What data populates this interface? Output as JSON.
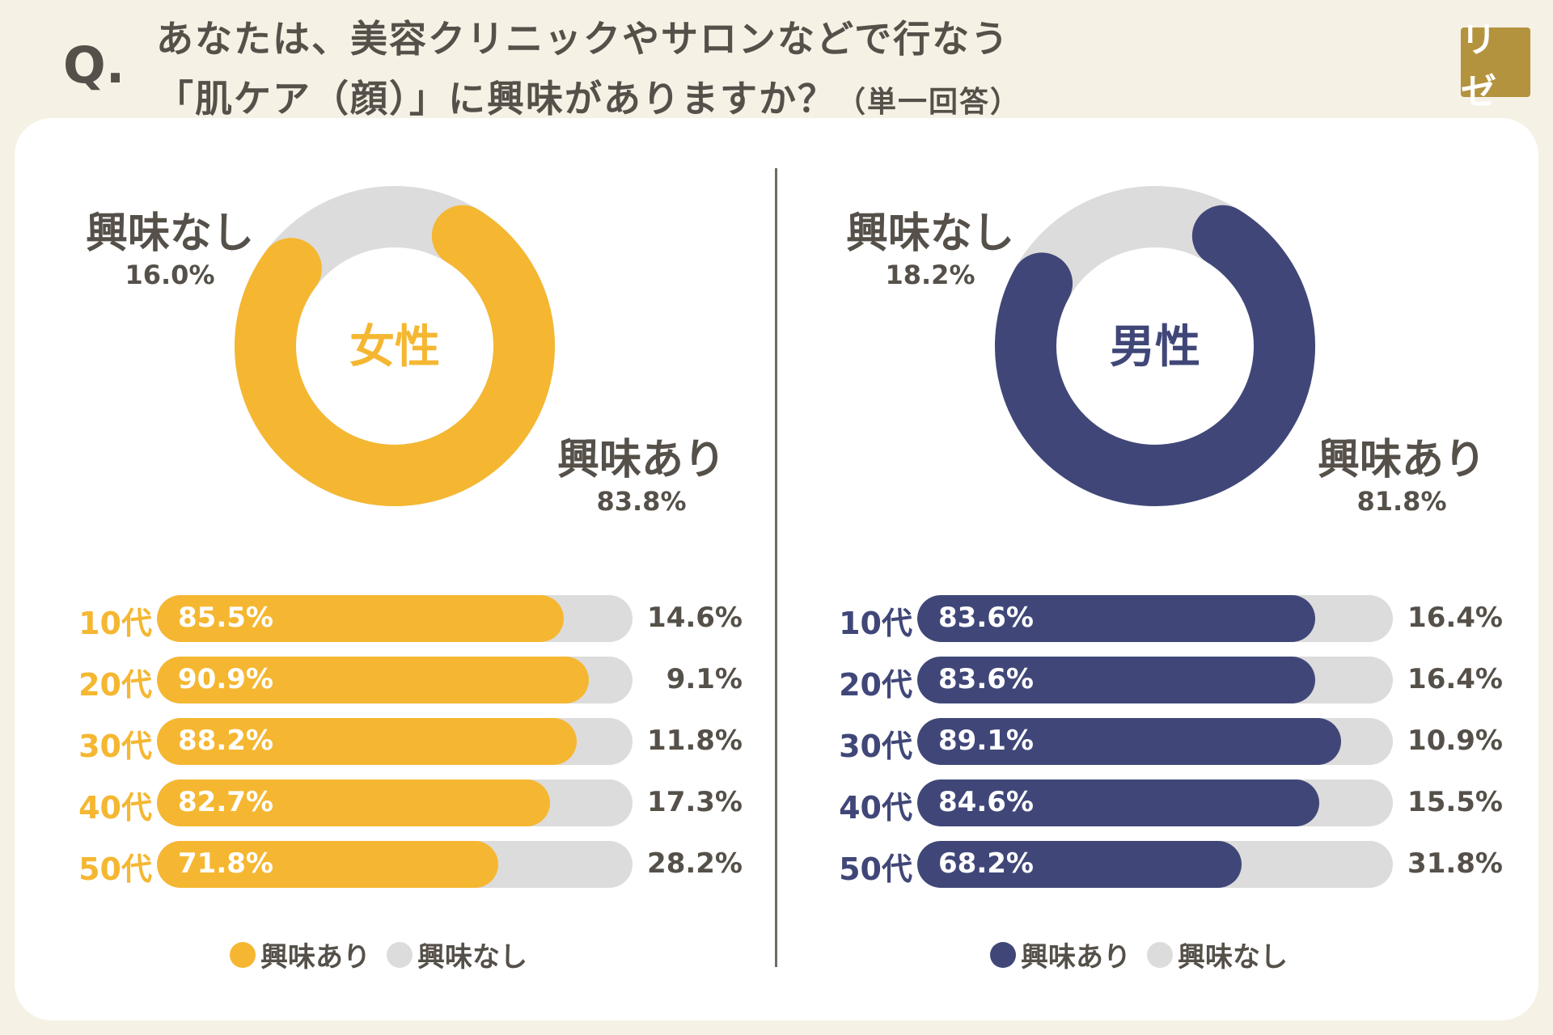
{
  "header": {
    "q_mark": "Q.",
    "line1": "あなたは、美容クリニックやサロンなどで行なう",
    "line2": "「肌ケア（顔）」に興味がありますか？",
    "note": "（単一回答）",
    "logo": "リゼ"
  },
  "colors": {
    "female": "#f5b731",
    "male": "#404778",
    "none": "#dcdcdc",
    "text": "#555049"
  },
  "chart_data": [
    {
      "type": "pie",
      "title": "女性",
      "categories": [
        "興味あり",
        "興味なし"
      ],
      "values": [
        83.8,
        16.0
      ],
      "labels": [
        "83.8%",
        "16.0%"
      ]
    },
    {
      "type": "pie",
      "title": "男性",
      "categories": [
        "興味あり",
        "興味なし"
      ],
      "values": [
        81.8,
        18.2
      ],
      "labels": [
        "81.8%",
        "18.2%"
      ]
    },
    {
      "type": "bar",
      "orientation": "horizontal-stacked",
      "group": "女性",
      "categories": [
        "10代",
        "20代",
        "30代",
        "40代",
        "50代"
      ],
      "series": [
        {
          "name": "興味あり",
          "values": [
            85.5,
            90.9,
            88.2,
            82.7,
            71.8
          ],
          "labels": [
            "85.5%",
            "90.9%",
            "88.2%",
            "82.7%",
            "71.8%"
          ]
        },
        {
          "name": "興味なし",
          "values": [
            14.6,
            9.1,
            11.8,
            17.3,
            28.2
          ],
          "labels": [
            "14.6%",
            "9.1%",
            "11.8%",
            "17.3%",
            "28.2%"
          ]
        }
      ],
      "legend": [
        "興味あり",
        "興味なし"
      ]
    },
    {
      "type": "bar",
      "orientation": "horizontal-stacked",
      "group": "男性",
      "categories": [
        "10代",
        "20代",
        "30代",
        "40代",
        "50代"
      ],
      "series": [
        {
          "name": "興味あり",
          "values": [
            83.6,
            83.6,
            89.1,
            84.6,
            68.2
          ],
          "labels": [
            "83.6%",
            "83.6%",
            "89.1%",
            "84.6%",
            "68.2%"
          ]
        },
        {
          "name": "興味なし",
          "values": [
            16.4,
            16.4,
            10.9,
            15.5,
            31.8
          ],
          "labels": [
            "16.4%",
            "16.4%",
            "10.9%",
            "15.5%",
            "31.8%"
          ]
        }
      ],
      "legend": [
        "興味あり",
        "興味なし"
      ]
    }
  ]
}
